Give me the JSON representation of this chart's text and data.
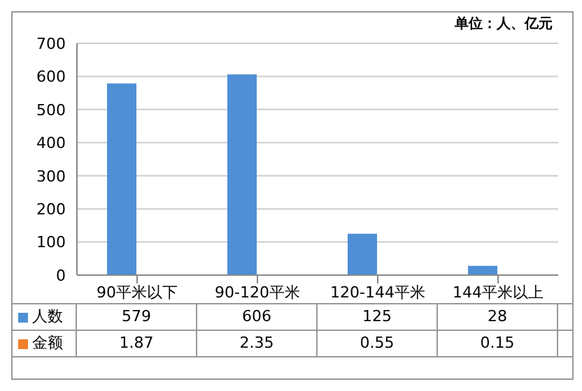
{
  "chart_data": {
    "type": "bar",
    "annotations": [
      "单位：人、亿元"
    ],
    "categories": [
      "90平米以下",
      "90-120平米",
      "120-144平米",
      "144平米以上"
    ],
    "series": [
      {
        "name": "人数",
        "color": "#4f8fd6",
        "values": [
          579,
          606,
          125,
          28
        ]
      },
      {
        "name": "金额",
        "color": "#f07f2a",
        "values": [
          1.87,
          2.35,
          0.55,
          0.15
        ]
      }
    ],
    "ylim": [
      0,
      700
    ],
    "yticks": [
      0,
      100,
      200,
      300,
      400,
      500,
      600,
      700
    ],
    "grid": "y",
    "legend": "bottom",
    "data_labels": true
  }
}
